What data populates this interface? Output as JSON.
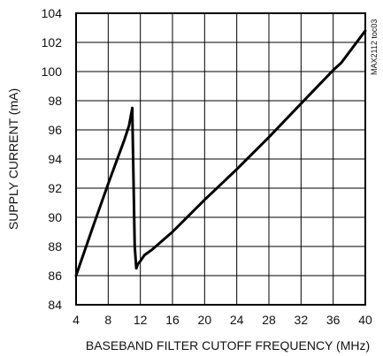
{
  "chart_data": {
    "type": "line",
    "title": "",
    "xlabel": "BASEBAND FILTER CUTOFF FREQUENCY (MHz)",
    "ylabel": "SUPPLY CURRENT (mA)",
    "side_note": "MAX2112 toc03",
    "xlim": [
      4,
      40
    ],
    "ylim": [
      84,
      104
    ],
    "x_ticks": [
      4,
      8,
      12,
      16,
      20,
      24,
      28,
      32,
      36,
      40
    ],
    "y_ticks": [
      84,
      86,
      88,
      90,
      92,
      94,
      96,
      98,
      100,
      102,
      104
    ],
    "grid": true,
    "legend": "none",
    "series": [
      {
        "x": [
          4.0,
          6.0,
          8.0,
          9.0,
          10.0,
          10.6,
          11.0,
          11.0,
          11.3,
          11.5,
          11.7,
          12.0,
          12.5,
          13.5,
          16.0,
          20.0,
          24.0,
          28.0,
          32.0,
          36.0,
          37.0,
          40.0
        ],
        "y": [
          86.0,
          89.2,
          92.3,
          93.8,
          95.3,
          96.3,
          97.5,
          97.1,
          88.0,
          86.5,
          86.8,
          87.0,
          87.4,
          87.8,
          89.0,
          91.2,
          93.3,
          95.5,
          97.8,
          100.1,
          100.6,
          102.8
        ]
      }
    ],
    "colors": {
      "line": "#000000",
      "grid": "#000000",
      "frame": "#000000"
    }
  }
}
